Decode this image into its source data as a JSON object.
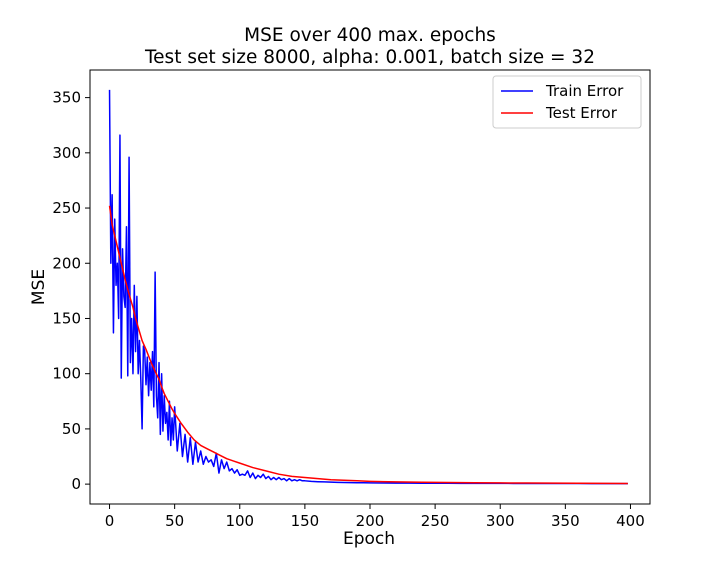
{
  "chart_data": {
    "type": "line",
    "title": "MSE  over 400 max. epochs",
    "subtitle": "Test set size 8000, alpha: 0.001, batch size = 32",
    "xlabel": "Epoch",
    "ylabel": "MSE",
    "xlim": [
      -15,
      415
    ],
    "ylim": [
      -18,
      375
    ],
    "xticks": [
      0,
      50,
      100,
      150,
      200,
      250,
      300,
      350,
      400
    ],
    "yticks": [
      0,
      50,
      100,
      150,
      200,
      250,
      300,
      350
    ],
    "grid": false,
    "legend_position": "top-right",
    "series": [
      {
        "name": "Train Error",
        "color": "#0000ff",
        "x": [
          0,
          1,
          2,
          3,
          4,
          5,
          6,
          7,
          8,
          9,
          10,
          11,
          12,
          13,
          14,
          15,
          16,
          17,
          18,
          19,
          20,
          21,
          22,
          23,
          24,
          25,
          26,
          27,
          28,
          29,
          30,
          31,
          32,
          33,
          34,
          35,
          36,
          37,
          38,
          39,
          40,
          41,
          42,
          43,
          44,
          45,
          46,
          47,
          48,
          49,
          50,
          52,
          54,
          56,
          58,
          60,
          62,
          64,
          66,
          68,
          70,
          72,
          74,
          76,
          78,
          80,
          82,
          84,
          86,
          88,
          90,
          92,
          94,
          96,
          98,
          100,
          102,
          104,
          106,
          108,
          110,
          112,
          114,
          116,
          118,
          120,
          122,
          124,
          126,
          128,
          130,
          132,
          134,
          136,
          138,
          140,
          142,
          144,
          146,
          148,
          150,
          155,
          160,
          165,
          170,
          175,
          180,
          185,
          190,
          195,
          200,
          210,
          220,
          230,
          240,
          250,
          260,
          270,
          280,
          290,
          300,
          310,
          320,
          330,
          340,
          350,
          360,
          370,
          380,
          390,
          398
        ],
        "y": [
          357,
          200,
          262,
          137,
          240,
          180,
          200,
          150,
          316,
          96,
          213,
          170,
          160,
          233,
          98,
          296,
          110,
          150,
          100,
          180,
          120,
          170,
          100,
          130,
          95,
          50,
          125,
          120,
          90,
          115,
          80,
          110,
          85,
          120,
          70,
          192,
          80,
          60,
          110,
          45,
          100,
          48,
          80,
          55,
          65,
          40,
          75,
          35,
          60,
          40,
          70,
          30,
          55,
          25,
          45,
          20,
          42,
          18,
          38,
          20,
          30,
          18,
          25,
          20,
          22,
          16,
          28,
          10,
          22,
          14,
          20,
          12,
          14,
          10,
          13,
          8,
          9,
          8,
          12,
          6,
          10,
          5,
          8,
          6,
          9,
          5,
          7,
          4,
          6,
          4,
          6,
          4,
          5,
          3,
          5,
          3,
          4,
          3,
          4,
          3,
          3,
          2.5,
          2.2,
          2,
          1.8,
          1.6,
          1.5,
          1.4,
          1.3,
          1.2,
          1.1,
          1,
          0.9,
          0.9,
          0.8,
          0.8,
          0.8,
          0.7,
          0.7,
          0.7,
          0.7,
          0.6,
          0.6,
          0.6,
          0.6,
          0.6,
          0.6,
          0.5,
          0.5,
          0.5,
          0.5
        ]
      },
      {
        "name": "Test Error",
        "color": "#ff0000",
        "x": [
          0,
          2,
          4,
          6,
          8,
          10,
          12,
          15,
          18,
          20,
          22,
          25,
          28,
          30,
          32,
          35,
          38,
          40,
          42,
          45,
          48,
          50,
          55,
          60,
          65,
          70,
          75,
          80,
          85,
          90,
          95,
          100,
          110,
          120,
          130,
          140,
          150,
          160,
          170,
          180,
          190,
          200,
          220,
          240,
          260,
          280,
          300,
          320,
          340,
          360,
          380,
          398
        ],
        "y": [
          252,
          235,
          225,
          215,
          205,
          195,
          185,
          172,
          160,
          150,
          142,
          130,
          122,
          116,
          110,
          102,
          95,
          88,
          82,
          75,
          68,
          64,
          55,
          47,
          40,
          35,
          32,
          29,
          26,
          23,
          21,
          19,
          15,
          12,
          9,
          7,
          6,
          5,
          4,
          3.5,
          3,
          2.5,
          2,
          1.7,
          1.5,
          1.3,
          1.1,
          1,
          0.9,
          0.8,
          0.7,
          0.6
        ]
      }
    ]
  }
}
